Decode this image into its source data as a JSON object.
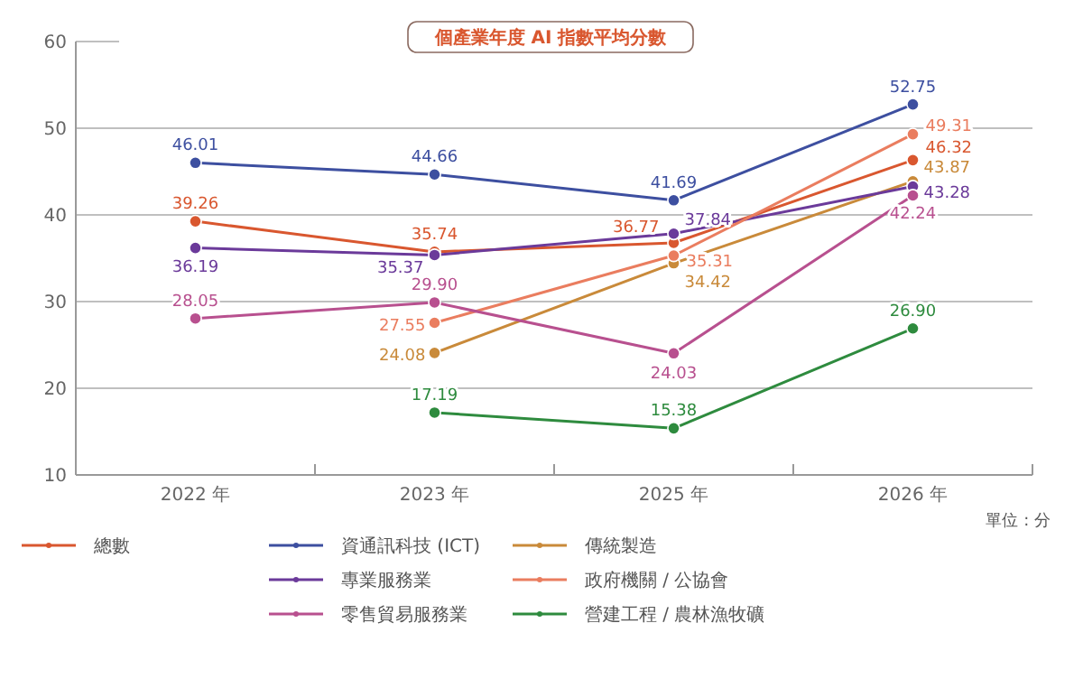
{
  "chart_data": {
    "type": "line",
    "title": "個產業年度 AI 指數平均分數",
    "categories": [
      "2022 年",
      "2023 年",
      "2025 年",
      "2026 年"
    ],
    "series": [
      {
        "name": "總數",
        "color": "#d9572f",
        "values": [
          39.26,
          35.74,
          36.77,
          46.32
        ],
        "value_labels": [
          "39.26",
          "35.74",
          "36.77",
          "46.32"
        ]
      },
      {
        "name": "資通訊科技 (ICT)",
        "color": "#3d4fa0",
        "values": [
          46.01,
          44.66,
          41.69,
          52.75
        ],
        "value_labels": [
          "46.01",
          "44.66",
          "41.69",
          "52.75"
        ]
      },
      {
        "name": "傳統製造",
        "color": "#c98a3a",
        "values": [
          null,
          24.08,
          34.42,
          43.87
        ],
        "value_labels": [
          null,
          "24.08",
          "34.42",
          "43.87"
        ]
      },
      {
        "name": "專業服務業",
        "color": "#6b3a9a",
        "values": [
          36.19,
          35.37,
          37.84,
          43.28
        ],
        "value_labels": [
          "36.19",
          "35.37",
          "37.84",
          "43.28"
        ]
      },
      {
        "name": "政府機關 / 公協會",
        "color": "#ea7d5f",
        "values": [
          null,
          27.55,
          35.31,
          49.31
        ],
        "value_labels": [
          null,
          "27.55",
          "35.31",
          "49.31"
        ]
      },
      {
        "name": "零售貿易服務業",
        "color": "#b8508f",
        "values": [
          28.05,
          29.9,
          24.03,
          42.24
        ],
        "value_labels": [
          "28.05",
          "29.90",
          "24.03",
          "42.24"
        ]
      },
      {
        "name": "營建工程 / 農林漁牧礦",
        "color": "#2e8b3e",
        "values": [
          null,
          17.19,
          15.38,
          26.9
        ],
        "value_labels": [
          null,
          "17.19",
          "15.38",
          "26.90"
        ]
      }
    ],
    "ylim": [
      10,
      60
    ],
    "yticks": [
      10,
      20,
      30,
      40,
      50,
      60
    ],
    "grid": "y",
    "legend": "bottom",
    "marker": "circle",
    "line_style": "solid",
    "annotations": [
      "單位 : 分"
    ]
  }
}
